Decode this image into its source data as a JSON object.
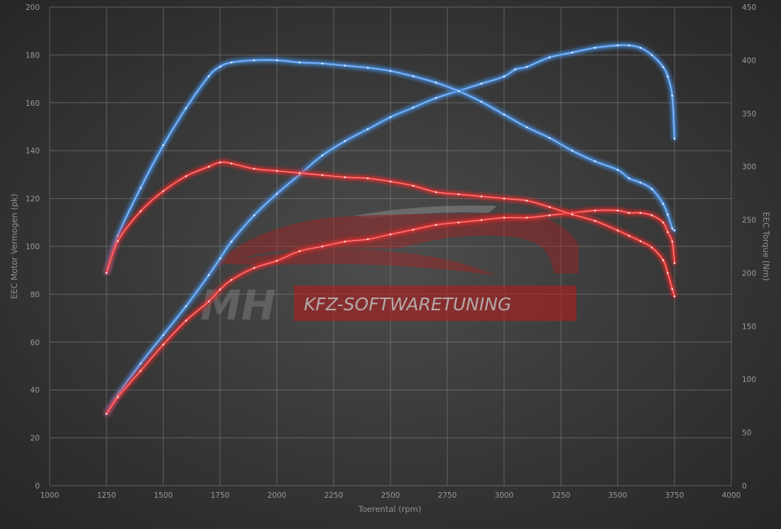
{
  "watermark": {
    "logo_letters": "MH",
    "brand_text": "KFZ-SOFTWARETUNING"
  },
  "chart_data": {
    "type": "line",
    "xlabel": "Toerental (rpm)",
    "ylabel_left": "EEC Motor Vermogen (pk)",
    "ylabel_right": "EEC Torque (Nm)",
    "xlim": [
      1000,
      4000
    ],
    "ylim_left": [
      0,
      200
    ],
    "ylim_right": [
      0,
      450
    ],
    "x_ticks": [
      1000,
      1250,
      1500,
      1750,
      2000,
      2250,
      2500,
      2750,
      3000,
      3250,
      3500,
      3750,
      4000
    ],
    "y_ticks_left": [
      0,
      20,
      40,
      60,
      80,
      100,
      120,
      140,
      160,
      180,
      200
    ],
    "y_ticks_right": [
      0,
      50,
      100,
      150,
      200,
      250,
      300,
      350,
      400,
      450
    ],
    "grid": true,
    "series": [
      {
        "color": "#4a8fe0",
        "axis": "left",
        "x": [
          1250,
          1300,
          1400,
          1500,
          1600,
          1700,
          1750,
          1800,
          1900,
          2000,
          2100,
          2200,
          2300,
          2400,
          2500,
          2600,
          2700,
          2800,
          2900,
          3000,
          3050,
          3100,
          3200,
          3300,
          3400,
          3500,
          3550,
          3600,
          3650,
          3700,
          3720,
          3740,
          3750
        ],
        "y": [
          30,
          38,
          51,
          63,
          75,
          88,
          95,
          102,
          113,
          122,
          130,
          138,
          144,
          149,
          154,
          158,
          162,
          165,
          168,
          171,
          174,
          175,
          179,
          181,
          183,
          184,
          184,
          183,
          180,
          175,
          171,
          163,
          145
        ]
      },
      {
        "color": "#4a8fe0",
        "axis": "right",
        "x": [
          1250,
          1300,
          1400,
          1500,
          1600,
          1700,
          1750,
          1800,
          1900,
          2000,
          2100,
          2200,
          2300,
          2400,
          2500,
          2600,
          2700,
          2800,
          2900,
          3000,
          3100,
          3200,
          3300,
          3400,
          3500,
          3550,
          3600,
          3650,
          3700,
          3720,
          3740,
          3750
        ],
        "y": [
          200,
          235,
          280,
          320,
          355,
          385,
          394,
          398,
          400,
          400,
          398,
          397,
          395,
          393,
          390,
          385,
          379,
          371,
          361,
          349,
          337,
          327,
          315,
          305,
          297,
          289,
          285,
          279,
          265,
          255,
          242,
          240
        ]
      },
      {
        "color": "#e23030",
        "axis": "left",
        "x": [
          1250,
          1300,
          1400,
          1500,
          1600,
          1700,
          1750,
          1800,
          1900,
          2000,
          2100,
          2200,
          2300,
          2400,
          2500,
          2600,
          2700,
          2800,
          2900,
          3000,
          3100,
          3200,
          3300,
          3400,
          3500,
          3550,
          3600,
          3650,
          3700,
          3720,
          3740,
          3750
        ],
        "y": [
          30,
          37,
          48,
          59,
          69,
          77,
          82,
          86,
          91,
          94,
          98,
          100,
          102,
          103,
          105,
          107,
          109,
          110,
          111,
          112,
          112,
          113,
          114,
          115,
          115,
          114,
          114,
          113,
          110,
          106,
          102,
          93
        ]
      },
      {
        "color": "#e23030",
        "axis": "right",
        "x": [
          1250,
          1300,
          1400,
          1500,
          1600,
          1700,
          1750,
          1800,
          1900,
          2000,
          2100,
          2200,
          2300,
          2400,
          2500,
          2600,
          2700,
          2800,
          2900,
          3000,
          3100,
          3200,
          3300,
          3400,
          3500,
          3550,
          3600,
          3650,
          3700,
          3720,
          3740,
          3750
        ],
        "y": [
          200,
          230,
          258,
          277,
          291,
          300,
          304,
          303,
          298,
          296,
          294,
          292,
          290,
          289,
          286,
          282,
          276,
          274,
          272,
          270,
          268,
          262,
          255,
          249,
          240,
          235,
          230,
          224,
          212,
          200,
          185,
          178
        ]
      }
    ]
  }
}
